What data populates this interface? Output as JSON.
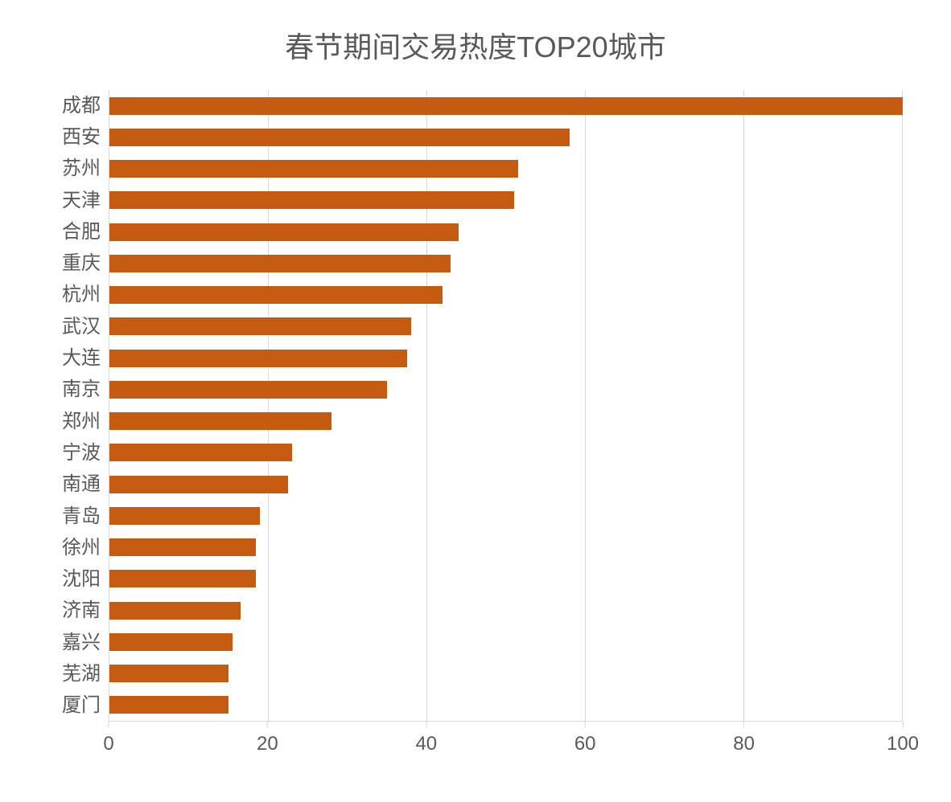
{
  "chart": {
    "type": "horizontal_bar",
    "title": "春节期间交易热度TOP20城市",
    "title_fontsize": 36,
    "title_color": "#595959",
    "background_color": "#ffffff",
    "bar_color": "#c55a11",
    "grid_color": "#d9d9d9",
    "axis_label_color": "#595959",
    "axis_label_fontsize": 24,
    "xlim": [
      0,
      100
    ],
    "xtick_step": 20,
    "xticks": [
      0,
      20,
      40,
      60,
      80,
      100
    ],
    "bar_height_ratio": 0.56,
    "categories": [
      "成都",
      "西安",
      "苏州",
      "天津",
      "合肥",
      "重庆",
      "杭州",
      "武汉",
      "大连",
      "南京",
      "郑州",
      "宁波",
      "南通",
      "青岛",
      "徐州",
      "沈阳",
      "济南",
      "嘉兴",
      "芜湖",
      "厦门"
    ],
    "values": [
      100,
      58,
      51.5,
      51,
      44,
      43,
      42,
      38,
      37.5,
      35,
      28,
      23,
      22.5,
      19,
      18.5,
      18.5,
      16.5,
      15.5,
      15,
      15
    ]
  }
}
